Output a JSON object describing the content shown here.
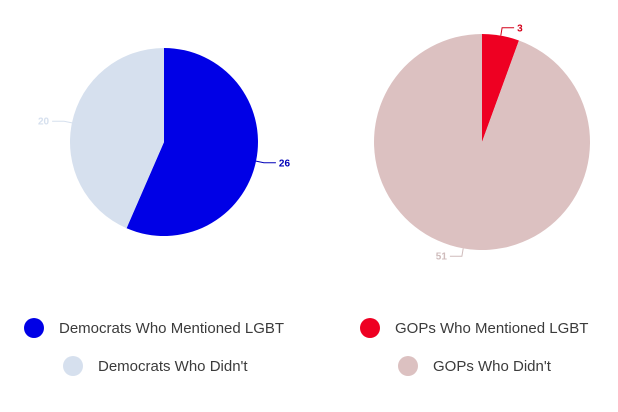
{
  "chart_data": [
    {
      "type": "pie",
      "title": "",
      "start_angle_deg": 0,
      "slices": [
        {
          "label": "Democrats Who Mentioned LGBT",
          "value": 26,
          "color": "#0000e6",
          "label_color": "#0000b8"
        },
        {
          "label": "Democrats Who Didn't",
          "value": 20,
          "color": "#d6e0ee",
          "label_color": "#d6e0ee"
        }
      ],
      "legend_placement": "bottom-left"
    },
    {
      "type": "pie",
      "title": "",
      "start_angle_deg": 0,
      "slices": [
        {
          "label": "GOPs Who Mentioned LGBT",
          "value": 3,
          "color": "#ee0022",
          "label_color": "#d4001a"
        },
        {
          "label": "GOPs Who Didn't",
          "value": 51,
          "color": "#dcc1c1",
          "label_color": "#cfbcbc"
        }
      ],
      "legend_placement": "bottom-right"
    }
  ]
}
